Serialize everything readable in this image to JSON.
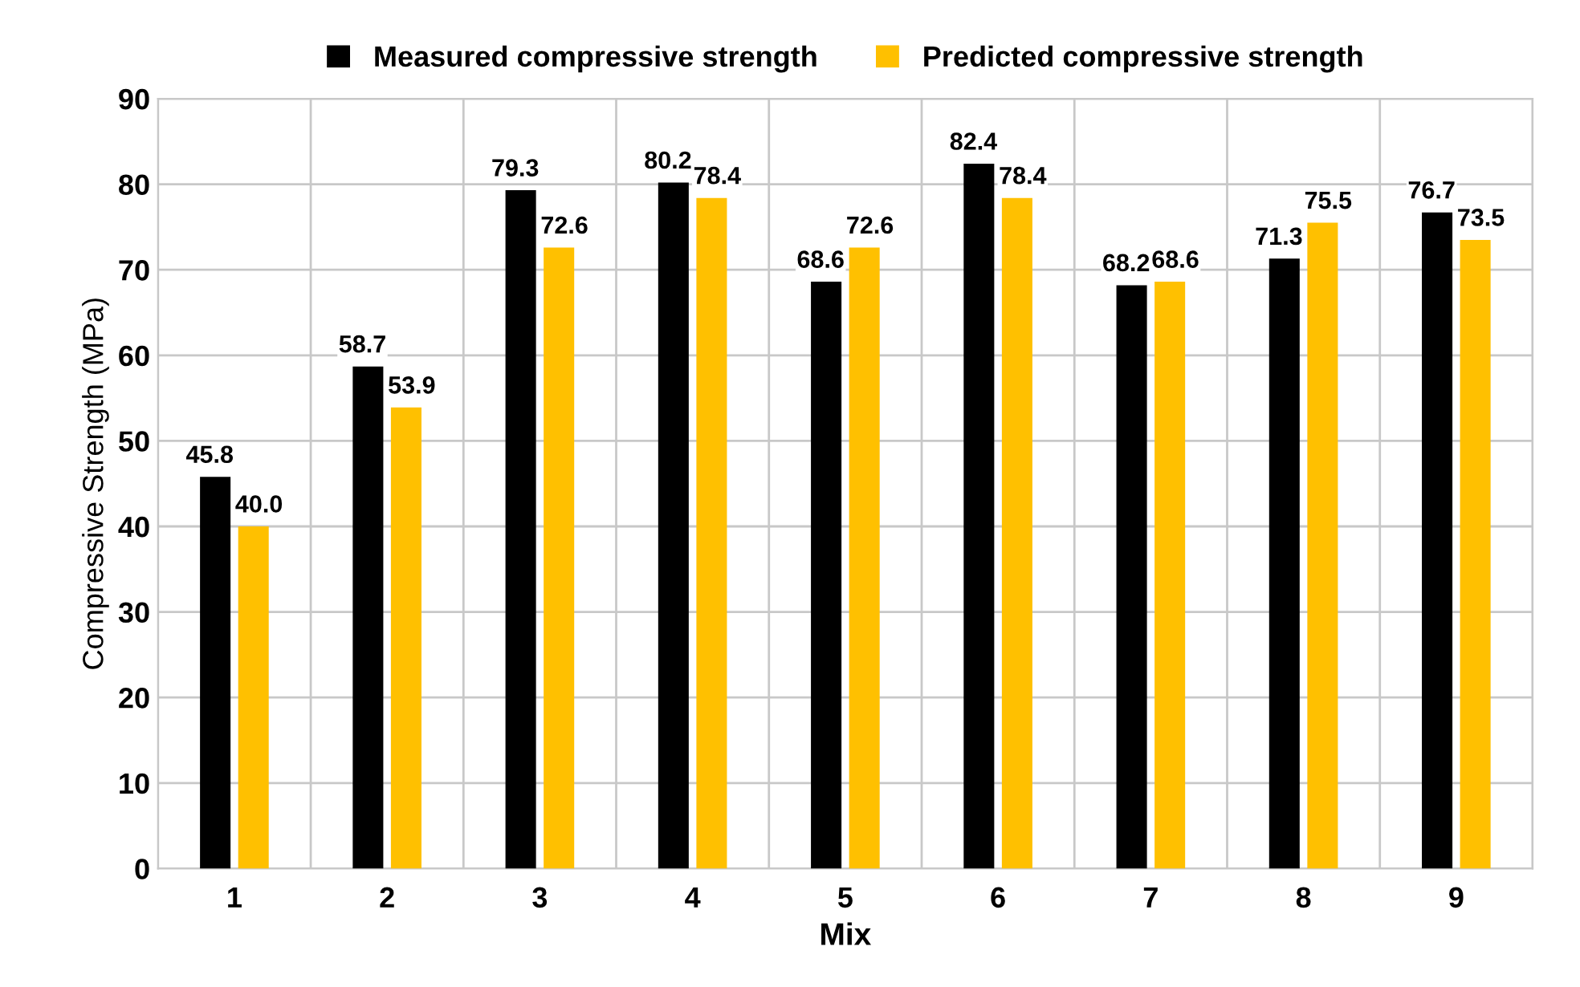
{
  "chart_data": {
    "type": "bar",
    "xlabel": "Mix",
    "ylabel": "Compressive Strength (MPa)",
    "categories": [
      "1",
      "2",
      "3",
      "4",
      "5",
      "6",
      "7",
      "8",
      "9"
    ],
    "series": [
      {
        "name": "Measured compressive strength",
        "color": "#000000",
        "values": [
          45.8,
          58.7,
          79.3,
          80.2,
          68.6,
          82.4,
          68.2,
          71.3,
          76.7
        ],
        "value_labels": [
          "45.8",
          "58.7",
          "79.3",
          "80.2",
          "68.6",
          "82.4",
          "68.2",
          "71.3",
          "76.7"
        ]
      },
      {
        "name": "Predicted compressive strength",
        "color": "#ffc000",
        "values": [
          40.0,
          53.9,
          72.6,
          78.4,
          72.6,
          78.4,
          68.6,
          75.5,
          73.5
        ],
        "value_labels": [
          "40.0",
          "53.9",
          "72.6",
          "78.4",
          "72.6",
          "78.4",
          "68.6",
          "75.5",
          "73.5"
        ]
      }
    ],
    "ylim": [
      0,
      90
    ],
    "yticks": [
      0,
      10,
      20,
      30,
      40,
      50,
      60,
      70,
      80,
      90
    ],
    "grid": true,
    "legend": "top"
  }
}
